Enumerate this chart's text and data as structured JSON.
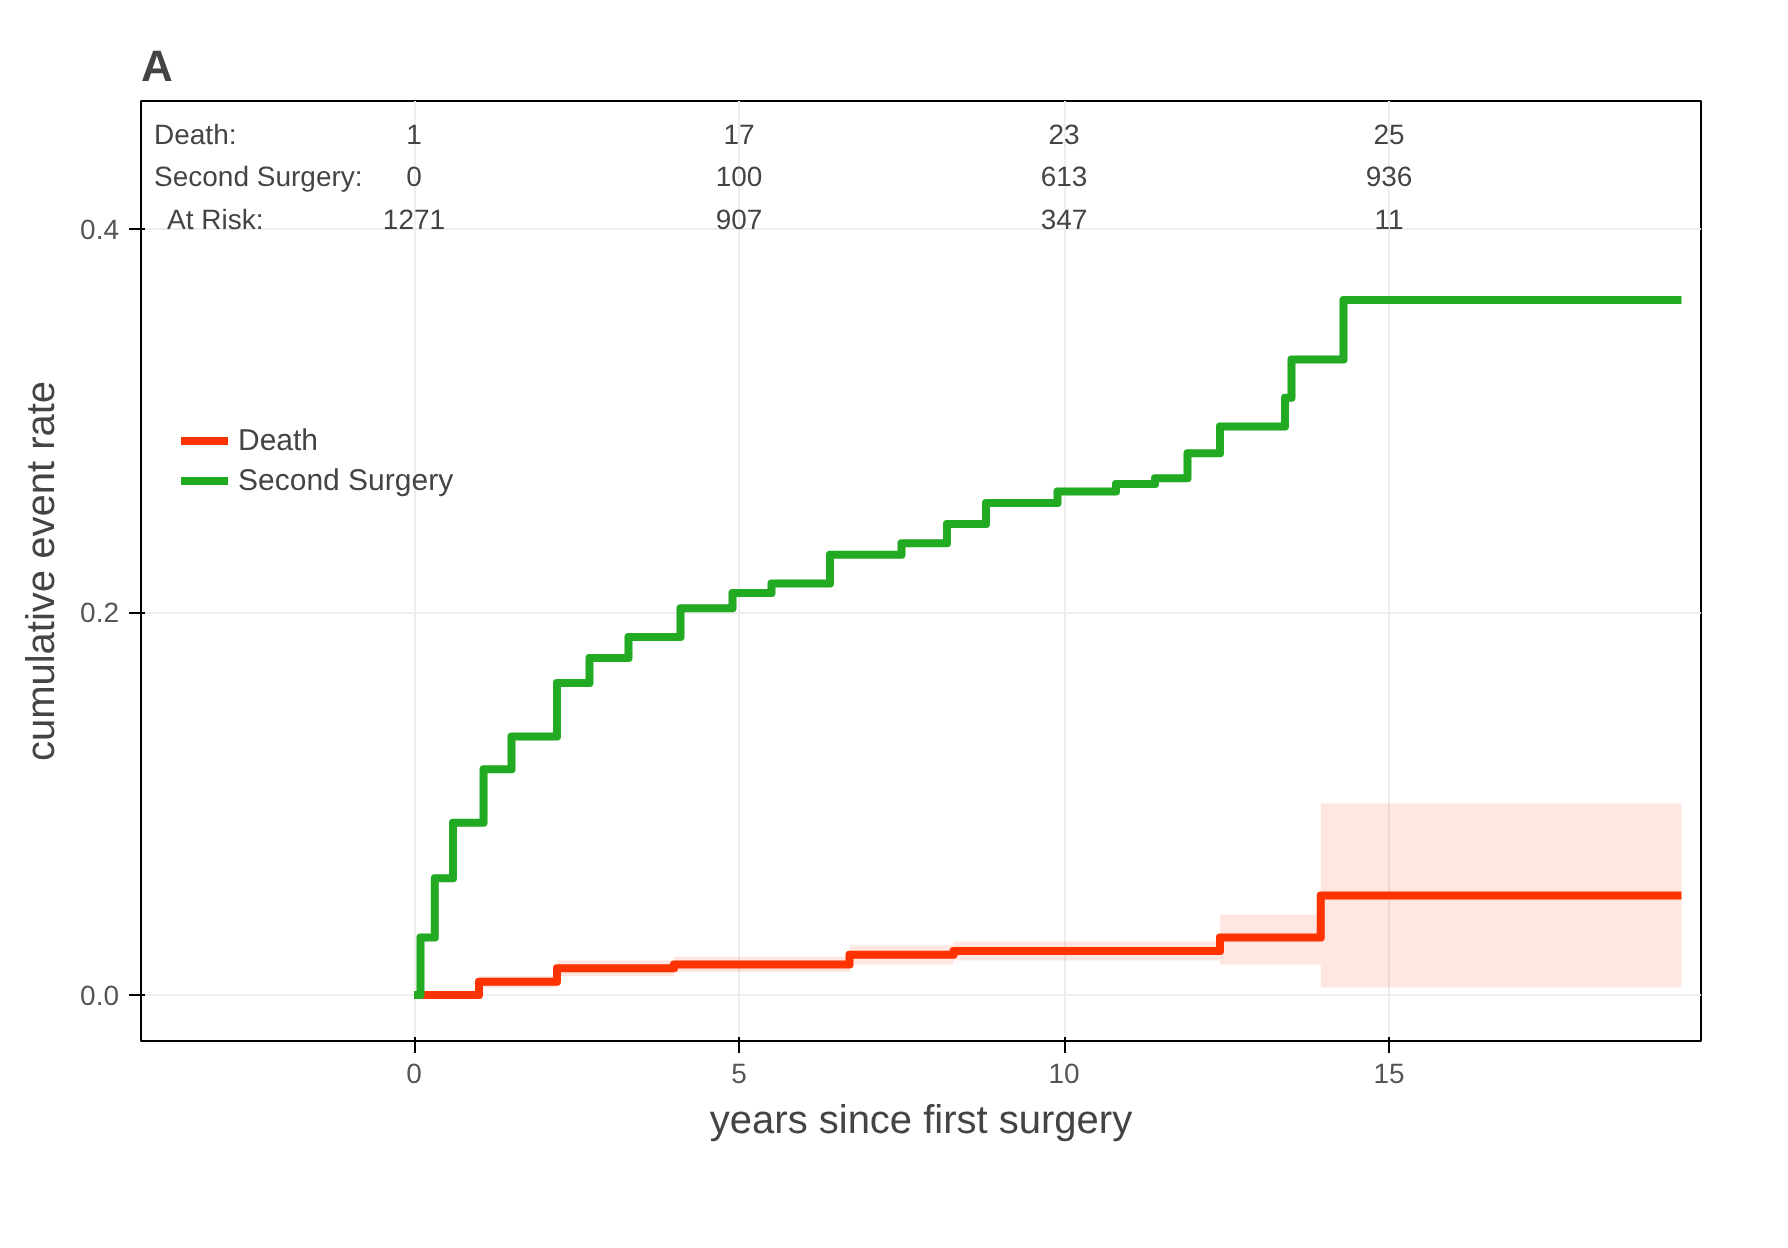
{
  "chart_data": {
    "type": "step",
    "title": "A",
    "xlabel": "years since first surgery",
    "ylabel": "cumulative event rate",
    "xlim": [
      -4.2,
      19.8
    ],
    "ylim": [
      -0.024,
      0.467
    ],
    "xticks": [
      0,
      5,
      10,
      15
    ],
    "yticks": [
      {
        "value": 0,
        "label": "0.0"
      },
      {
        "value": 0.2,
        "label": "0.2"
      },
      {
        "value": 0.4,
        "label": "0.4"
      }
    ],
    "grid": true,
    "legend": "top left",
    "annotations": [
      "Death:",
      "1",
      "17",
      "23",
      "25",
      "Second Surgery:",
      "0",
      "100",
      "613",
      "936",
      "At Risk:",
      "1271",
      "907",
      "347",
      "11"
    ],
    "series": [
      {
        "name": "Death",
        "color": "#ff3300",
        "x": [
          0,
          1,
          2.2,
          4,
          6.7,
          8.3,
          12.4,
          13.95,
          19.5
        ],
        "values": [
          0,
          0.007,
          0.014,
          0.016,
          0.021,
          0.023,
          0.03,
          0.052,
          0.052
        ],
        "lower": [
          0,
          0.004,
          0.01,
          0.012,
          0.016,
          0.018,
          0.016,
          0.004,
          0.004
        ],
        "upper": [
          0,
          0.01,
          0.018,
          0.02,
          0.026,
          0.028,
          0.042,
          0.1,
          0.1
        ]
      },
      {
        "name": "Second Surgery",
        "color": "#22aa22",
        "x": [
          0,
          0.1,
          0.32,
          0.6,
          1.07,
          1.5,
          2.2,
          2.7,
          3.3,
          4.1,
          4.9,
          5.5,
          6.4,
          7.5,
          8.2,
          8.8,
          9.9,
          10.8,
          11.4,
          11.9,
          12.4,
          13.4,
          13.5,
          14.3,
          19.5
        ],
        "values": [
          0,
          0.03,
          0.061,
          0.09,
          0.118,
          0.135,
          0.163,
          0.176,
          0.187,
          0.202,
          0.21,
          0.215,
          0.23,
          0.236,
          0.246,
          0.257,
          0.263,
          0.267,
          0.27,
          0.283,
          0.297,
          0.312,
          0.332,
          0.363,
          0.363
        ]
      }
    ]
  }
}
